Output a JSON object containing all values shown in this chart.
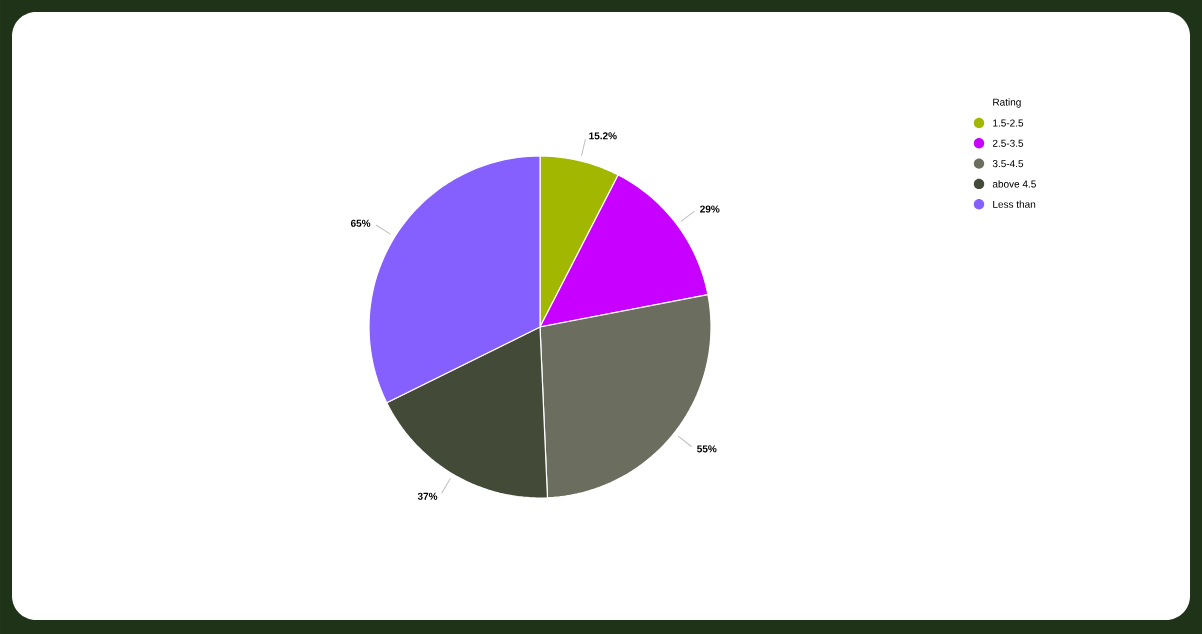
{
  "chart_data": {
    "type": "pie",
    "legend_title": "Rating",
    "legend": "right",
    "value_labels": [
      "15.2%",
      "29%",
      "55%",
      "37%",
      "65%"
    ],
    "categories": [
      "1.5-2.5",
      "2.5-3.5",
      "3.5-4.5",
      "above 4.5",
      "Less than"
    ],
    "values": [
      15.2,
      29,
      55,
      37,
      65
    ],
    "colors": [
      "#a2b800",
      "#c800ff",
      "#6b6e5e",
      "#434a38",
      "#8660ff"
    ]
  }
}
